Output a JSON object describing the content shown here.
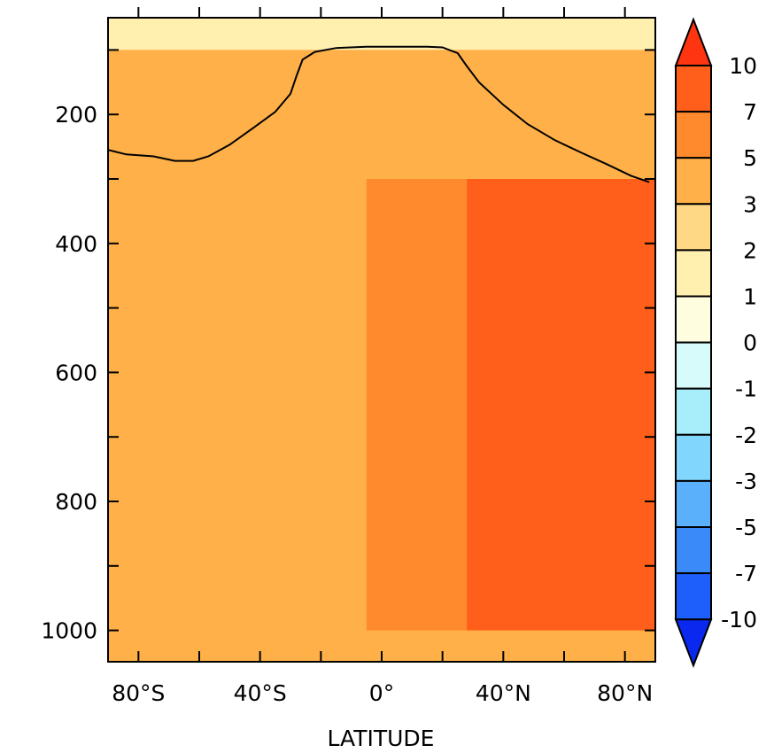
{
  "chart_data": {
    "type": "heatmap",
    "title": "",
    "xlabel": "LATITUDE",
    "ylabel": "",
    "xlim": [
      -90,
      90
    ],
    "ylim": [
      1000,
      50
    ],
    "x_ticks": [
      {
        "value": -80,
        "label": "80°S"
      },
      {
        "value": -40,
        "label": "40°S"
      },
      {
        "value": 0,
        "label": "0°"
      },
      {
        "value": 40,
        "label": "40°N"
      },
      {
        "value": 80,
        "label": "80°N"
      }
    ],
    "y_ticks": [
      {
        "value": 200,
        "label": "200"
      },
      {
        "value": 400,
        "label": "400"
      },
      {
        "value": 600,
        "label": "600"
      },
      {
        "value": 800,
        "label": "800"
      },
      {
        "value": 1000,
        "label": "1000"
      }
    ],
    "colorbar": {
      "levels": [
        "-10",
        "-7",
        "-5",
        "-3",
        "-2",
        "-1",
        "0",
        "1",
        "2",
        "3",
        "5",
        "7",
        "10"
      ],
      "colors": [
        "#0a28ee",
        "#1e5ffb",
        "#3a8af9",
        "#5ab0fb",
        "#80d6fc",
        "#a8eefa",
        "#d6fbfa",
        "#fffde0",
        "#fff0b0",
        "#ffd885",
        "#ffb048",
        "#ff8a2e",
        "#ff5f1a",
        "#ff3410"
      ]
    },
    "fields": [
      {
        "lat_range": [
          -90,
          -29
        ],
        "p_range": [
          300,
          1000
        ],
        "value": 3
      },
      {
        "lat_range": [
          -5,
          28
        ],
        "p_range": [
          300,
          1000
        ],
        "value": 5
      },
      {
        "lat_range": [
          28,
          90
        ],
        "p_range": [
          300,
          1000
        ],
        "value": 7
      },
      {
        "lat_range": [
          -90,
          90
        ],
        "p_range": [
          50,
          100
        ],
        "value": 1
      },
      {
        "lat_range": [
          -90,
          90
        ],
        "p_range": [
          100,
          300
        ],
        "value": 3
      }
    ],
    "contour_line": [
      [
        -90,
        255
      ],
      [
        -84,
        262
      ],
      [
        -75,
        265
      ],
      [
        -68,
        272
      ],
      [
        -62,
        272
      ],
      [
        -57,
        265
      ],
      [
        -50,
        247
      ],
      [
        -42,
        220
      ],
      [
        -35,
        196
      ],
      [
        -30,
        168
      ],
      [
        -28,
        140
      ],
      [
        -26,
        115
      ],
      [
        -22,
        103
      ],
      [
        -15,
        97
      ],
      [
        -5,
        95
      ],
      [
        5,
        95
      ],
      [
        15,
        95
      ],
      [
        20,
        96
      ],
      [
        25,
        105
      ],
      [
        28,
        125
      ],
      [
        32,
        150
      ],
      [
        40,
        185
      ],
      [
        48,
        215
      ],
      [
        57,
        240
      ],
      [
        66,
        260
      ],
      [
        74,
        277
      ],
      [
        82,
        295
      ],
      [
        88,
        305
      ]
    ]
  }
}
